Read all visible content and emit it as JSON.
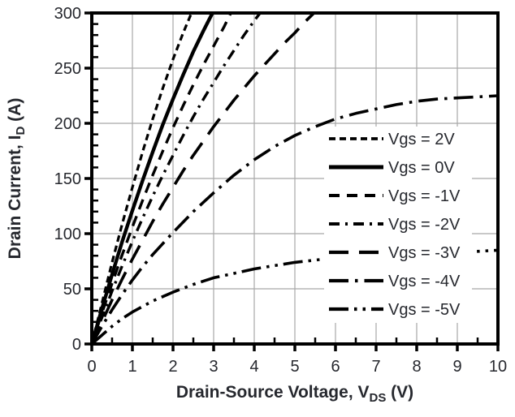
{
  "figure": {
    "description": "Transistor output characteristics: drain current vs drain-source voltage for several gate-source voltages",
    "background": "#ffffff"
  },
  "colors": {
    "line": "#000000",
    "grid": "#a8a8a8",
    "axis": "#000000",
    "text": "#26282e",
    "legend_background": "#ffffff"
  },
  "chart_data": {
    "type": "line",
    "title": "",
    "xlabel_parts": {
      "main": "Drain-Source Voltage, V",
      "sub": "DS",
      "suffix": " (V)"
    },
    "ylabel_parts": {
      "main": "Drain Current, I",
      "sub": "D",
      "suffix": " (A)"
    },
    "xlim": [
      0,
      10
    ],
    "ylim": [
      0,
      300
    ],
    "x_ticks": [
      0,
      1,
      2,
      3,
      4,
      5,
      6,
      7,
      8,
      9,
      10
    ],
    "y_ticks": [
      0,
      50,
      100,
      150,
      200,
      250,
      300
    ],
    "x_minor_step": 0.5,
    "y_minor_step": 10,
    "grid": true,
    "legend_position": "inside-right",
    "series": [
      {
        "name": "Vgs = 2V",
        "linestyle": "short-dash",
        "dash": [
          8,
          5
        ],
        "width": 3.2,
        "points": [
          [
            0,
            0
          ],
          [
            0.25,
            37
          ],
          [
            0.5,
            74
          ],
          [
            0.75,
            109
          ],
          [
            1,
            142
          ],
          [
            1.25,
            174
          ],
          [
            1.5,
            204
          ],
          [
            1.75,
            232
          ],
          [
            2,
            258
          ],
          [
            2.25,
            282
          ],
          [
            2.5,
            304
          ],
          [
            2.6,
            312
          ]
        ]
      },
      {
        "name": "Vgs = 0V",
        "linestyle": "solid",
        "dash": [],
        "width": 4.4,
        "points": [
          [
            0,
            0
          ],
          [
            0.25,
            32
          ],
          [
            0.5,
            63
          ],
          [
            0.75,
            93
          ],
          [
            1,
            121
          ],
          [
            1.25,
            148
          ],
          [
            1.5,
            174
          ],
          [
            1.75,
            199
          ],
          [
            2,
            222
          ],
          [
            2.25,
            244
          ],
          [
            2.5,
            265
          ],
          [
            2.75,
            284
          ],
          [
            3,
            302
          ],
          [
            3.1,
            309
          ]
        ]
      },
      {
        "name": "Vgs = -1V",
        "linestyle": "dash",
        "dash": [
          13,
          9
        ],
        "width": 3.4,
        "points": [
          [
            0,
            0
          ],
          [
            0.25,
            28
          ],
          [
            0.5,
            55
          ],
          [
            0.75,
            81
          ],
          [
            1,
            106
          ],
          [
            1.25,
            130
          ],
          [
            1.5,
            153
          ],
          [
            1.75,
            175
          ],
          [
            2,
            196
          ],
          [
            2.25,
            216
          ],
          [
            2.5,
            235
          ],
          [
            2.75,
            253
          ],
          [
            3,
            270
          ],
          [
            3.25,
            287
          ],
          [
            3.45,
            302
          ],
          [
            3.55,
            308
          ]
        ]
      },
      {
        "name": "Vgs = -2V",
        "linestyle": "dash-dot",
        "dash": [
          13,
          7,
          3,
          7
        ],
        "width": 3.4,
        "points": [
          [
            0,
            0
          ],
          [
            0.25,
            24
          ],
          [
            0.5,
            48
          ],
          [
            0.75,
            71
          ],
          [
            1,
            93
          ],
          [
            1.25,
            114
          ],
          [
            1.5,
            134
          ],
          [
            1.75,
            153
          ],
          [
            2,
            171
          ],
          [
            2.25,
            189
          ],
          [
            2.5,
            206
          ],
          [
            2.75,
            222
          ],
          [
            3,
            237
          ],
          [
            3.25,
            252
          ],
          [
            3.5,
            266
          ],
          [
            3.75,
            280
          ],
          [
            4,
            293
          ],
          [
            4.25,
            305
          ],
          [
            4.35,
            310
          ]
        ]
      },
      {
        "name": "Vgs = -3V",
        "linestyle": "long-dash",
        "dash": [
          24,
          13
        ],
        "width": 3.6,
        "points": [
          [
            0,
            0
          ],
          [
            0.25,
            20
          ],
          [
            0.5,
            40
          ],
          [
            0.75,
            59
          ],
          [
            1,
            77
          ],
          [
            1.25,
            94
          ],
          [
            1.5,
            111
          ],
          [
            1.75,
            127
          ],
          [
            2,
            142
          ],
          [
            2.25,
            157
          ],
          [
            2.5,
            171
          ],
          [
            2.75,
            184
          ],
          [
            3,
            197
          ],
          [
            3.25,
            209
          ],
          [
            3.5,
            221
          ],
          [
            3.75,
            232
          ],
          [
            4,
            243
          ],
          [
            4.25,
            253
          ],
          [
            4.5,
            263
          ],
          [
            4.75,
            273
          ],
          [
            5,
            282
          ],
          [
            5.25,
            292
          ],
          [
            5.5,
            301
          ],
          [
            5.6,
            305
          ]
        ]
      },
      {
        "name": "Vgs = -4V",
        "linestyle": "long-dash-dot",
        "dash": [
          24,
          8,
          3.5,
          8
        ],
        "width": 3.6,
        "points": [
          [
            0,
            0
          ],
          [
            0.25,
            16
          ],
          [
            0.5,
            31
          ],
          [
            0.75,
            45
          ],
          [
            1,
            58
          ],
          [
            1.25,
            70
          ],
          [
            1.5,
            81
          ],
          [
            1.75,
            91
          ],
          [
            2,
            101
          ],
          [
            2.5,
            120
          ],
          [
            3,
            137
          ],
          [
            3.5,
            153
          ],
          [
            4,
            167
          ],
          [
            4.5,
            179
          ],
          [
            5,
            189
          ],
          [
            5.5,
            197
          ],
          [
            6,
            204
          ],
          [
            6.5,
            209
          ],
          [
            7,
            213
          ],
          [
            7.5,
            217
          ],
          [
            8,
            220
          ],
          [
            8.5,
            222
          ],
          [
            9,
            223
          ],
          [
            9.5,
            224
          ],
          [
            10,
            225
          ]
        ]
      },
      {
        "name": "Vgs = -5V",
        "linestyle": "long-dash-dot-dot",
        "dash": [
          24,
          7,
          3.5,
          7,
          3.5,
          7
        ],
        "width": 3.6,
        "points": [
          [
            0,
            0
          ],
          [
            0.25,
            8
          ],
          [
            0.5,
            16
          ],
          [
            0.75,
            23
          ],
          [
            1,
            29
          ],
          [
            1.5,
            39
          ],
          [
            2,
            47
          ],
          [
            2.5,
            54
          ],
          [
            3,
            60
          ],
          [
            3.5,
            64
          ],
          [
            4,
            68
          ],
          [
            4.5,
            71
          ],
          [
            5,
            74
          ],
          [
            5.5,
            76
          ],
          [
            6,
            78
          ],
          [
            6.5,
            79
          ],
          [
            7,
            80
          ],
          [
            7.5,
            81
          ],
          [
            8,
            82
          ],
          [
            8.5,
            83
          ],
          [
            9,
            84
          ],
          [
            9.5,
            84
          ],
          [
            10,
            85
          ]
        ]
      }
    ]
  }
}
